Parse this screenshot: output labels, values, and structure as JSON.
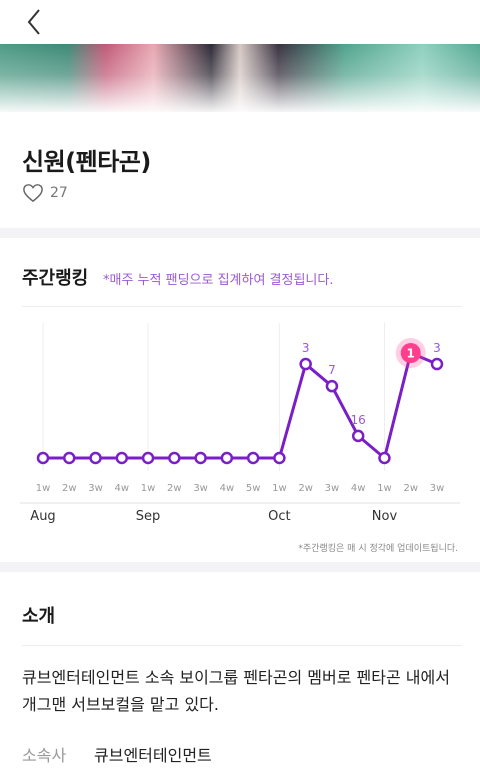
{
  "profile": {
    "name": "신원(펜타곤)",
    "like_count": "27"
  },
  "ranking": {
    "title": "주간랭킹",
    "note": "*매주 누적 팬딩으로 집계하여 결정됩니다.",
    "footnote": "*주간랭킹은 매 시 정각에 업데이트됩니다."
  },
  "intro": {
    "title": "소개",
    "text": "큐브엔터테인먼트 소속 보이그룹 펜타곤의 멤버로 펜타곤 내에서 개그맨 서브보컬을 맡고 있다.",
    "agency_label": "소속사",
    "agency_value": "큐브엔터테인먼트"
  },
  "colors": {
    "line": "#7a1fc7",
    "accent": "#9b59d3",
    "highlight": "#ff3f8e"
  },
  "icons": [
    "back-chevron-icon",
    "heart-icon"
  ],
  "chart_data": {
    "type": "line",
    "categories": [
      "1w",
      "2w",
      "3w",
      "4w",
      "1w",
      "2w",
      "3w",
      "4w",
      "5w",
      "1w",
      "2w",
      "3w",
      "4w",
      "1w",
      "2w",
      "3w"
    ],
    "months": [
      {
        "label": "Aug",
        "index": 0
      },
      {
        "label": "Sep",
        "index": 4
      },
      {
        "label": "Oct",
        "index": 9
      },
      {
        "label": "Nov",
        "index": 13
      }
    ],
    "values": [
      null,
      null,
      null,
      null,
      null,
      null,
      null,
      null,
      null,
      null,
      3,
      7,
      16,
      null,
      1,
      3
    ],
    "labels": [
      "",
      "",
      "",
      "",
      "",
      "",
      "",
      "",
      "",
      "",
      "3",
      "7",
      "16",
      "",
      "1",
      "3"
    ],
    "highlight_index": 14,
    "y_reversed": true,
    "grid": "vertical"
  }
}
